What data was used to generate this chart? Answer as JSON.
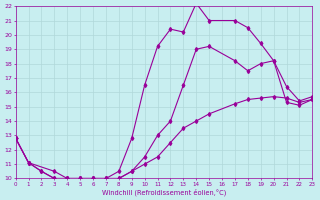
{
  "bg_color": "#c8eef0",
  "grid_color": "#b0d8da",
  "line_color": "#990099",
  "xmin": 0,
  "xmax": 23,
  "ymin": 10,
  "ymax": 22,
  "xlabel": "Windchill (Refroidissement éolien,°C)",
  "lA_x": [
    0,
    1,
    2,
    3,
    4,
    5,
    6,
    7,
    8,
    9,
    10,
    11,
    12,
    13,
    14,
    15,
    17,
    18,
    19,
    20,
    21,
    22,
    23
  ],
  "lA_y": [
    12.8,
    11.1,
    10.5,
    10.0,
    10.0,
    10.0,
    10.0,
    10.0,
    10.0,
    10.5,
    11.5,
    13.0,
    14.0,
    16.5,
    19.0,
    19.2,
    18.2,
    17.5,
    18.0,
    18.2,
    15.3,
    15.1,
    15.5
  ],
  "lB_x": [
    0,
    1,
    2,
    3,
    4,
    5,
    6,
    7,
    8,
    9,
    10,
    11,
    12,
    13,
    14,
    15,
    17,
    18,
    19,
    20,
    21,
    22,
    23
  ],
  "lB_y": [
    12.8,
    11.1,
    10.5,
    10.0,
    10.0,
    10.0,
    10.0,
    10.0,
    10.5,
    12.8,
    16.5,
    19.2,
    20.4,
    20.2,
    22.2,
    21.0,
    21.0,
    20.5,
    19.4,
    18.2,
    16.4,
    15.4,
    15.7
  ],
  "lC_x": [
    0,
    1,
    3,
    4,
    5,
    6,
    7,
    8,
    9,
    10,
    11,
    12,
    13,
    14,
    15,
    17,
    18,
    19,
    20,
    21,
    22,
    23
  ],
  "lC_y": [
    12.8,
    11.1,
    10.5,
    10.0,
    10.0,
    10.0,
    10.0,
    10.0,
    10.5,
    11.0,
    11.5,
    12.5,
    13.5,
    14.0,
    14.5,
    15.2,
    15.5,
    15.6,
    15.7,
    15.6,
    15.3,
    15.5
  ]
}
